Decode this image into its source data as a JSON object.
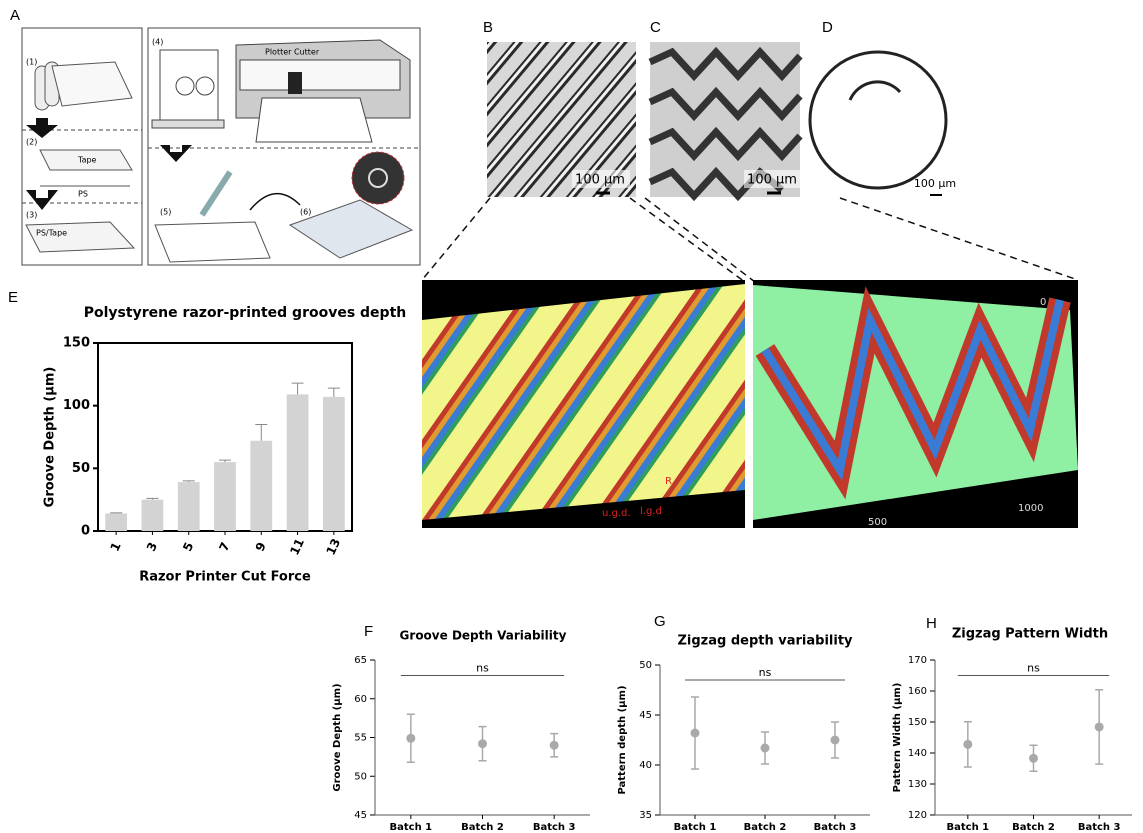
{
  "panel_labels": [
    "A",
    "B",
    "C",
    "D",
    "E",
    "F",
    "G",
    "H"
  ],
  "diagram": {
    "step1": "(1)",
    "step2": "(2)",
    "tape": "Tape",
    "ps": "PS",
    "step3": "(3)",
    "ps_tape": "PS/Tape",
    "step4": "(4)",
    "plotter": "Plotter Cutter",
    "step5": "(5)",
    "step6": "(6)"
  },
  "micrographs": {
    "scale_b": "100 µm",
    "scale_c": "100 µm",
    "scale_d": "100 µm"
  },
  "profiles": {
    "ugd": "u.g.d.",
    "lgd": "l.g.d",
    "r": "R",
    "axis_0": "0",
    "axis_500": "500",
    "axis_1000": "1000"
  },
  "chart_data": [
    {
      "type": "bar",
      "title": "Polystyrene razor-printed grooves depth",
      "y_label": "Groove Depth (µm)",
      "x_label": "Razor Printer Cut Force",
      "categories": [
        "1",
        "3",
        "5",
        "7",
        "9",
        "11",
        "13"
      ],
      "values": [
        14,
        25,
        39,
        55,
        72,
        109,
        107
      ],
      "errors": [
        0.5,
        1,
        1,
        1.5,
        13,
        9,
        7
      ],
      "color": "#d3d3d3",
      "ylim": [
        0,
        150
      ],
      "yticks": [
        0,
        50,
        100,
        150
      ]
    },
    {
      "type": "point",
      "title": "Groove Depth Variability",
      "y_label": "Groove Depth (µm)",
      "annotation": "ns",
      "categories": [
        "Batch 1",
        "Batch 2",
        "Batch 3"
      ],
      "values": [
        54.9,
        54.2,
        54
      ],
      "errors": [
        3.1,
        2.2,
        1.5
      ],
      "color": "#a9a9a9",
      "ylim": [
        45,
        65
      ],
      "yticks": [
        45,
        50,
        55,
        60,
        65
      ]
    },
    {
      "type": "point",
      "title": "Zigzag depth variability",
      "y_label": "Pattern depth (µm)",
      "annotation": "ns",
      "categories": [
        "Batch 1",
        "Batch 2",
        "Batch 3"
      ],
      "values": [
        43.2,
        41.7,
        42.5
      ],
      "errors": [
        3.6,
        1.6,
        1.8
      ],
      "color": "#a9a9a9",
      "ylim": [
        35,
        50
      ],
      "yticks": [
        35,
        40,
        45,
        50
      ]
    },
    {
      "type": "point",
      "title": "Zigzag Pattern Width",
      "y_label": "Pattern Width (µm)",
      "annotation": "ns",
      "categories": [
        "Batch 1",
        "Batch 2",
        "Batch 3"
      ],
      "values": [
        142.8,
        138.3,
        148.4
      ],
      "errors": [
        7.3,
        4.2,
        12
      ],
      "color": "#a9a9a9",
      "ylim": [
        120,
        170
      ],
      "yticks": [
        120,
        130,
        140,
        150,
        160,
        170
      ]
    }
  ]
}
